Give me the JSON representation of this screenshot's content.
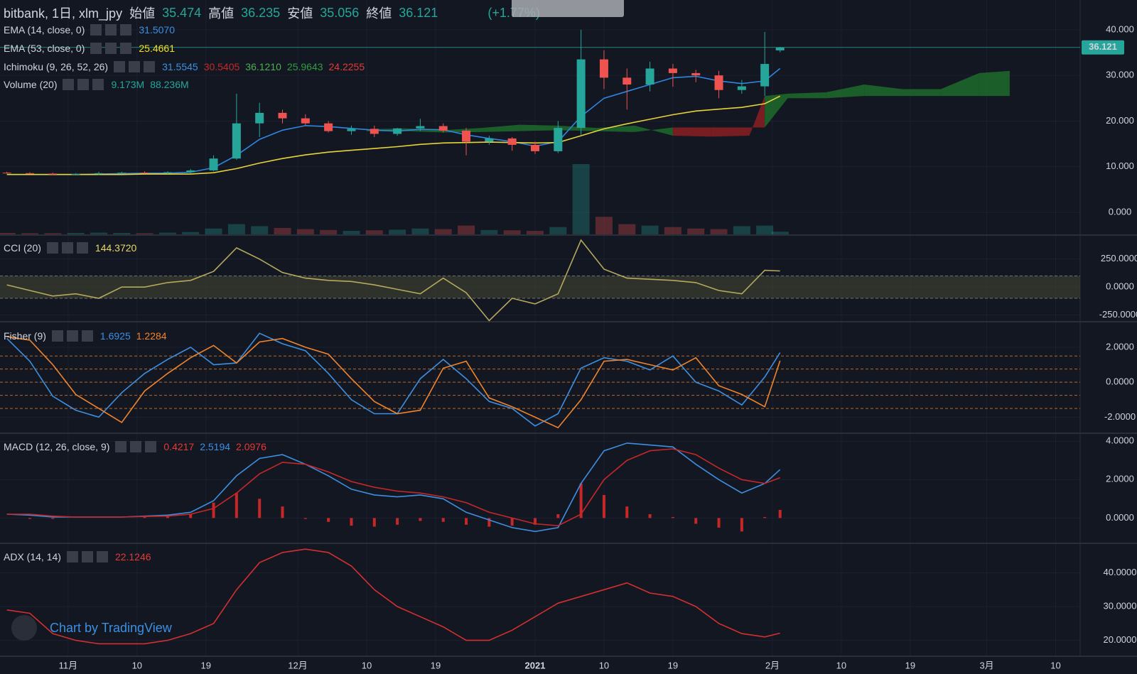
{
  "header": {
    "symbol": "bitbank, 1日, xlm_jpy",
    "open_label": "始値",
    "open": "35.474",
    "high_label": "高値",
    "high": "36.235",
    "low_label": "安値",
    "low": "35.056",
    "close_label": "終値",
    "close": "36.121",
    "change": "(+1.77%)"
  },
  "watermark": "Chart by TradingView",
  "chart_data": [
    {
      "type": "candlestick",
      "xlim": [
        -7.9,
        133.2
      ],
      "xticks": [
        {
          "value": 1,
          "label": "11月"
        },
        {
          "value": 10,
          "label": "10"
        },
        {
          "value": 19,
          "label": "19"
        },
        {
          "value": 31,
          "label": "12月"
        },
        {
          "value": 40,
          "label": "10"
        },
        {
          "value": 49,
          "label": "19"
        },
        {
          "value": 62,
          "label": "2021"
        },
        {
          "value": 71,
          "label": "10"
        },
        {
          "value": 80,
          "label": "19"
        },
        {
          "value": 93,
          "label": "2月"
        },
        {
          "value": 102,
          "label": "10"
        },
        {
          "value": 111,
          "label": "19"
        },
        {
          "value": 121,
          "label": "3月"
        },
        {
          "value": 130,
          "label": "10"
        }
      ],
      "ylim": [
        -4.8,
        46.5
      ],
      "yticks": [
        {
          "value": 40,
          "label": "40.000"
        },
        {
          "value": 30,
          "label": "30.000"
        },
        {
          "value": 20,
          "label": "20.000"
        },
        {
          "value": 10,
          "label": "10.000"
        },
        {
          "value": 0,
          "label": "0.000"
        }
      ],
      "up_color": "#26a69a",
      "down_color": "#ef5350",
      "x": [
        -7,
        -4,
        -1,
        2,
        5,
        8,
        11,
        14,
        17,
        20,
        23,
        26,
        29,
        32,
        35,
        38,
        41,
        44,
        47,
        50,
        53,
        56,
        59,
        62,
        65,
        68,
        71,
        74,
        77,
        80,
        83,
        86,
        89,
        92,
        94
      ],
      "open": [
        8.7,
        8.6,
        8.5,
        8.3,
        8.4,
        8.6,
        8.7,
        8.6,
        8.8,
        9.2,
        11.8,
        19.5,
        21.8,
        20.6,
        19.5,
        17.8,
        18.3,
        17.2,
        18.4,
        18.9,
        17.9,
        15.5,
        16.2,
        14.8,
        13.4,
        18.5,
        33.5,
        29.5,
        28.0,
        31.5,
        30.5,
        30.0,
        26.8,
        27.6,
        35.474
      ],
      "high": [
        8.9,
        8.8,
        8.7,
        8.6,
        8.9,
        8.9,
        9.0,
        9.0,
        9.5,
        12.5,
        26,
        24,
        22.5,
        21.5,
        20,
        19,
        19,
        18.5,
        20.5,
        19.5,
        18.5,
        16.8,
        16.5,
        15.5,
        20,
        40,
        35.5,
        31.5,
        33,
        32.5,
        31.2,
        31.0,
        29.0,
        39.5,
        36.235
      ],
      "low": [
        8.5,
        8.4,
        8.2,
        8.1,
        8.2,
        8.4,
        8.5,
        8.4,
        8.6,
        9.0,
        11.5,
        16.5,
        19.5,
        19,
        17.5,
        17,
        16.5,
        16.8,
        17.8,
        17.5,
        12.5,
        14.8,
        13.5,
        12.8,
        13.0,
        17,
        27,
        22.5,
        26.5,
        27.5,
        28.5,
        25.0,
        26.0,
        25.5,
        35.056
      ],
      "close": [
        8.6,
        8.5,
        8.3,
        8.4,
        8.6,
        8.7,
        8.6,
        8.8,
        9.2,
        11.8,
        19.5,
        21.8,
        20.6,
        19.5,
        17.8,
        18.3,
        17.2,
        18.4,
        18.9,
        17.9,
        15.5,
        16.2,
        14.8,
        13.4,
        18.5,
        33.5,
        29.5,
        28.0,
        31.5,
        30.5,
        30.0,
        26.8,
        27.6,
        32.5,
        36.121
      ],
      "series": [
        {
          "name": "EMA (14, close, 0)",
          "color": "#2f86e0",
          "values": [
            8.3,
            8.3,
            8.3,
            8.3,
            8.4,
            8.5,
            8.6,
            8.6,
            8.8,
            9.8,
            12.5,
            16.0,
            18.0,
            19.0,
            18.8,
            18.4,
            18.0,
            17.8,
            18.2,
            18.1,
            17.0,
            16.2,
            15.5,
            14.5,
            15.5,
            21,
            25,
            26.5,
            28,
            29.5,
            29.8,
            28.8,
            28.2,
            28.8,
            31.507
          ]
        },
        {
          "name": "EMA (53, close, 0)",
          "color": "#e8d33a",
          "values": [
            8.3,
            8.3,
            8.3,
            8.3,
            8.3,
            8.3,
            8.4,
            8.4,
            8.4,
            8.7,
            9.6,
            10.8,
            11.8,
            12.6,
            13.2,
            13.6,
            14.0,
            14.4,
            14.9,
            15.2,
            15.3,
            15.4,
            15.3,
            15.2,
            15.3,
            16.8,
            18.3,
            19.4,
            20.4,
            21.4,
            22.2,
            22.6,
            23.0,
            23.8,
            25.4661
          ]
        }
      ],
      "cloud": {
        "x": [
          40,
          45,
          50,
          55,
          60,
          65,
          70,
          75,
          80,
          85,
          90,
          92,
          95,
          100,
          105,
          110,
          115,
          120,
          124
        ],
        "span_a": [
          18.2,
          18.4,
          18.0,
          18.5,
          19.2,
          19.0,
          18.5,
          19.0,
          16.8,
          16.6,
          16.8,
          25.5,
          26.0,
          26.3,
          28.0,
          27.0,
          27.0,
          30.5,
          31.0
        ],
        "span_b": [
          17.8,
          17.8,
          17.5,
          17.6,
          17.8,
          18.0,
          17.8,
          17.6,
          18.6,
          18.6,
          18.6,
          18.6,
          25.0,
          25.0,
          25.5,
          25.5,
          25.5,
          25.5,
          25.5
        ],
        "up_color": "#1f6b2a",
        "down_color": "#8b1e22"
      },
      "volume": {
        "ylim": [
          0,
          800
        ],
        "values": [
          5,
          4,
          4,
          5,
          6,
          5,
          4,
          6,
          8,
          20,
          35,
          28,
          22,
          18,
          15,
          12,
          14,
          16,
          20,
          18,
          30,
          15,
          14,
          12,
          25,
          240,
          60,
          35,
          30,
          25,
          20,
          18,
          28,
          30,
          9.173
        ]
      },
      "legends": [
        {
          "label": "EMA (14, close, 0)",
          "values": [
            "31.5070"
          ],
          "colors": [
            "#3d8fe0"
          ]
        },
        {
          "label": "EMA (53, close, 0)",
          "values": [
            "25.4661"
          ],
          "colors": [
            "#f5e11b"
          ]
        },
        {
          "label": "Ichimoku (9, 26, 52, 26)",
          "values": [
            "31.5545",
            "30.5405",
            "36.1210",
            "25.9643",
            "24.2255"
          ],
          "colors": [
            "#3d8fe0",
            "#c62828",
            "#4caf50",
            "#2e9e3f",
            "#e53935"
          ]
        },
        {
          "label": "Volume (20)",
          "values": [
            "9.173M",
            "88.236M"
          ],
          "colors": [
            "#26a69a",
            "#26a69a"
          ]
        }
      ]
    },
    {
      "type": "line",
      "ylim": [
        -303,
        458
      ],
      "yticks": [
        {
          "value": 250,
          "label": "250.0000"
        },
        {
          "value": 0,
          "label": "0.0000"
        },
        {
          "value": -250,
          "label": "-250.0000"
        }
      ],
      "band": [
        -100,
        100
      ],
      "series": [
        {
          "name": "CCI (20)",
          "color": "#b5a95e",
          "values": [
            20,
            -30,
            -80,
            -60,
            -100,
            0,
            0,
            40,
            60,
            140,
            350,
            250,
            130,
            80,
            60,
            50,
            20,
            -20,
            -60,
            80,
            -50,
            -300,
            -100,
            -150,
            -60,
            420,
            160,
            80,
            70,
            60,
            40,
            -30,
            -60,
            150,
            144.372
          ]
        }
      ],
      "legends": [
        {
          "label": "CCI (20)",
          "values": [
            "144.3720"
          ],
          "colors": [
            "#e8d86a"
          ]
        }
      ]
    },
    {
      "type": "line",
      "ylim": [
        -2.875,
        3.375
      ],
      "yticks": [
        {
          "value": 2,
          "label": "2.0000"
        },
        {
          "value": 0,
          "label": "0.0000"
        },
        {
          "value": -2,
          "label": "-2.0000"
        }
      ],
      "levels": [
        1.5,
        0.75,
        0,
        -0.75,
        -1.5
      ],
      "series": [
        {
          "name": "Fisher",
          "color": "#3d8fe0",
          "values": [
            2.5,
            1.2,
            -0.8,
            -1.6,
            -2.0,
            -0.6,
            0.5,
            1.3,
            2.0,
            1.0,
            1.1,
            2.8,
            2.2,
            1.8,
            0.5,
            -1.0,
            -1.8,
            -1.8,
            0.2,
            1.3,
            0.2,
            -1.1,
            -1.5,
            -2.5,
            -1.8,
            0.8,
            1.4,
            1.2,
            0.7,
            1.5,
            0.0,
            -0.5,
            -1.3,
            0.3,
            1.6925
          ]
        },
        {
          "name": "Trigger",
          "color": "#f0842c",
          "values": [
            2.6,
            2.4,
            1.0,
            -0.7,
            -1.5,
            -2.3,
            -0.5,
            0.5,
            1.4,
            2.1,
            1.1,
            2.3,
            2.5,
            2.0,
            1.6,
            0.2,
            -1.1,
            -1.8,
            -1.6,
            0.8,
            1.2,
            -0.9,
            -1.4,
            -2.0,
            -2.6,
            -1.0,
            1.2,
            1.3,
            1.0,
            0.7,
            1.4,
            -0.2,
            -0.7,
            -1.4,
            1.2284
          ]
        }
      ],
      "legends": [
        {
          "label": "Fisher (9)",
          "values": [
            "1.6925",
            "1.2284"
          ],
          "colors": [
            "#3d8fe0",
            "#f0842c"
          ]
        }
      ]
    },
    {
      "type": "macd",
      "ylim": [
        -1.28,
        4.34
      ],
      "yticks": [
        {
          "value": 4,
          "label": "4.0000"
        },
        {
          "value": 2,
          "label": "2.0000"
        },
        {
          "value": 0,
          "label": "0.0000"
        }
      ],
      "histogram": {
        "color": "#c62828",
        "values": [
          0,
          -0.05,
          -0.05,
          0,
          0,
          0,
          0.05,
          0.1,
          0.2,
          0.8,
          1.3,
          1.0,
          0.6,
          -0.05,
          -0.2,
          -0.4,
          -0.45,
          -0.35,
          -0.15,
          -0.2,
          -0.35,
          -0.45,
          -0.4,
          -0.35,
          0.2,
          1.8,
          1.2,
          0.6,
          0.2,
          0.05,
          -0.3,
          -0.5,
          -0.7,
          0.05,
          0.4217
        ]
      },
      "series": [
        {
          "name": "MACD",
          "color": "#3d8fe0",
          "values": [
            0.2,
            0.15,
            0.05,
            0.05,
            0.05,
            0.05,
            0.1,
            0.15,
            0.3,
            0.9,
            2.2,
            3.1,
            3.3,
            2.8,
            2.2,
            1.5,
            1.2,
            1.1,
            1.2,
            1.0,
            0.3,
            -0.1,
            -0.5,
            -0.7,
            -0.5,
            1.8,
            3.5,
            3.9,
            3.8,
            3.7,
            2.8,
            2.0,
            1.3,
            1.8,
            2.5194
          ]
        },
        {
          "name": "Signal",
          "color": "#c62828",
          "values": [
            0.2,
            0.2,
            0.1,
            0.05,
            0.05,
            0.05,
            0.08,
            0.1,
            0.2,
            0.5,
            1.3,
            2.3,
            2.9,
            2.8,
            2.4,
            1.9,
            1.6,
            1.4,
            1.3,
            1.1,
            0.8,
            0.3,
            0,
            -0.3,
            -0.4,
            0.2,
            2.0,
            3.0,
            3.5,
            3.6,
            3.3,
            2.6,
            2.0,
            1.8,
            2.0976
          ]
        }
      ],
      "legends": [
        {
          "label": "MACD (12, 26, close, 9)",
          "values": [
            "0.4217",
            "2.5194",
            "2.0976"
          ],
          "colors": [
            "#e53935",
            "#3d8fe0",
            "#e53935"
          ]
        }
      ]
    },
    {
      "type": "line",
      "ylim": [
        15.5,
        48.3
      ],
      "yticks": [
        {
          "value": 40,
          "label": "40.0000"
        },
        {
          "value": 30,
          "label": "30.0000"
        },
        {
          "value": 20,
          "label": "20.0000"
        }
      ],
      "series": [
        {
          "name": "ADX (14, 14)",
          "color": "#d32f2f",
          "values": [
            29,
            28,
            22,
            20,
            19,
            19,
            19,
            20,
            22,
            25,
            35,
            43,
            46,
            47,
            46,
            42,
            35,
            30,
            27,
            24,
            20,
            20,
            23,
            27,
            31,
            33,
            35,
            37,
            34,
            33,
            30,
            25,
            22,
            21,
            22.1246
          ]
        }
      ],
      "legends": [
        {
          "label": "ADX (14, 14)",
          "values": [
            "22.1246"
          ],
          "colors": [
            "#e53935"
          ]
        }
      ]
    }
  ]
}
